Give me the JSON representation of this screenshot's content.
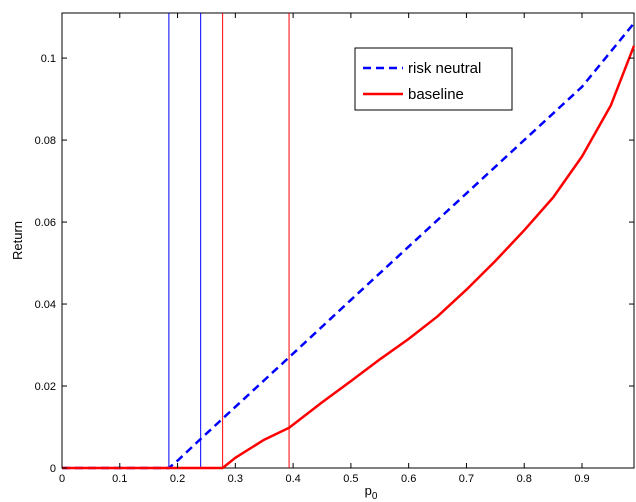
{
  "chart_data": {
    "type": "line",
    "xlabel": "p",
    "xlabel_subscript": "0",
    "ylabel": "Return",
    "xlim": [
      0,
      0.99
    ],
    "ylim": [
      0,
      0.111
    ],
    "xticks": [
      0,
      0.1,
      0.2,
      0.3,
      0.4,
      0.5,
      0.6,
      0.7,
      0.8,
      0.9
    ],
    "xtick_labels": [
      "0",
      "0.1",
      "0.2",
      "0.3",
      "0.4",
      "0.5",
      "0.6",
      "0.7",
      "0.8",
      "0.9"
    ],
    "yticks": [
      0,
      0.02,
      0.04,
      0.06,
      0.08,
      0.1
    ],
    "ytick_labels": [
      "0",
      "0.02",
      "0.04",
      "0.06",
      "0.08",
      "0.1"
    ],
    "grid": false,
    "legend_position": "top-right",
    "series": [
      {
        "name": "risk neutral",
        "color": "#0000ff",
        "dash": "dashed",
        "x": [
          0,
          0.1,
          0.185,
          0.2,
          0.24,
          0.3,
          0.4,
          0.5,
          0.6,
          0.7,
          0.8,
          0.9,
          0.99
        ],
        "y": [
          0,
          0,
          0,
          0.0018,
          0.0071,
          0.0149,
          0.0279,
          0.041,
          0.054,
          0.067,
          0.08,
          0.093,
          0.1085
        ]
      },
      {
        "name": "baseline",
        "color": "#ff0000",
        "dash": "solid",
        "x": [
          0,
          0.1,
          0.2,
          0.278,
          0.3,
          0.35,
          0.393,
          0.45,
          0.5,
          0.55,
          0.6,
          0.65,
          0.7,
          0.75,
          0.8,
          0.85,
          0.9,
          0.95,
          0.99
        ],
        "y": [
          0,
          0,
          0,
          0,
          0.0025,
          0.0069,
          0.0098,
          0.016,
          0.0212,
          0.0265,
          0.0315,
          0.037,
          0.0435,
          0.0505,
          0.058,
          0.066,
          0.076,
          0.0885,
          0.103
        ]
      }
    ],
    "vertical_lines": [
      {
        "x": 0.185,
        "color": "#0000ff"
      },
      {
        "x": 0.24,
        "color": "#0000ff"
      },
      {
        "x": 0.278,
        "color": "#ff0000"
      },
      {
        "x": 0.393,
        "color": "#ff0000"
      }
    ]
  }
}
